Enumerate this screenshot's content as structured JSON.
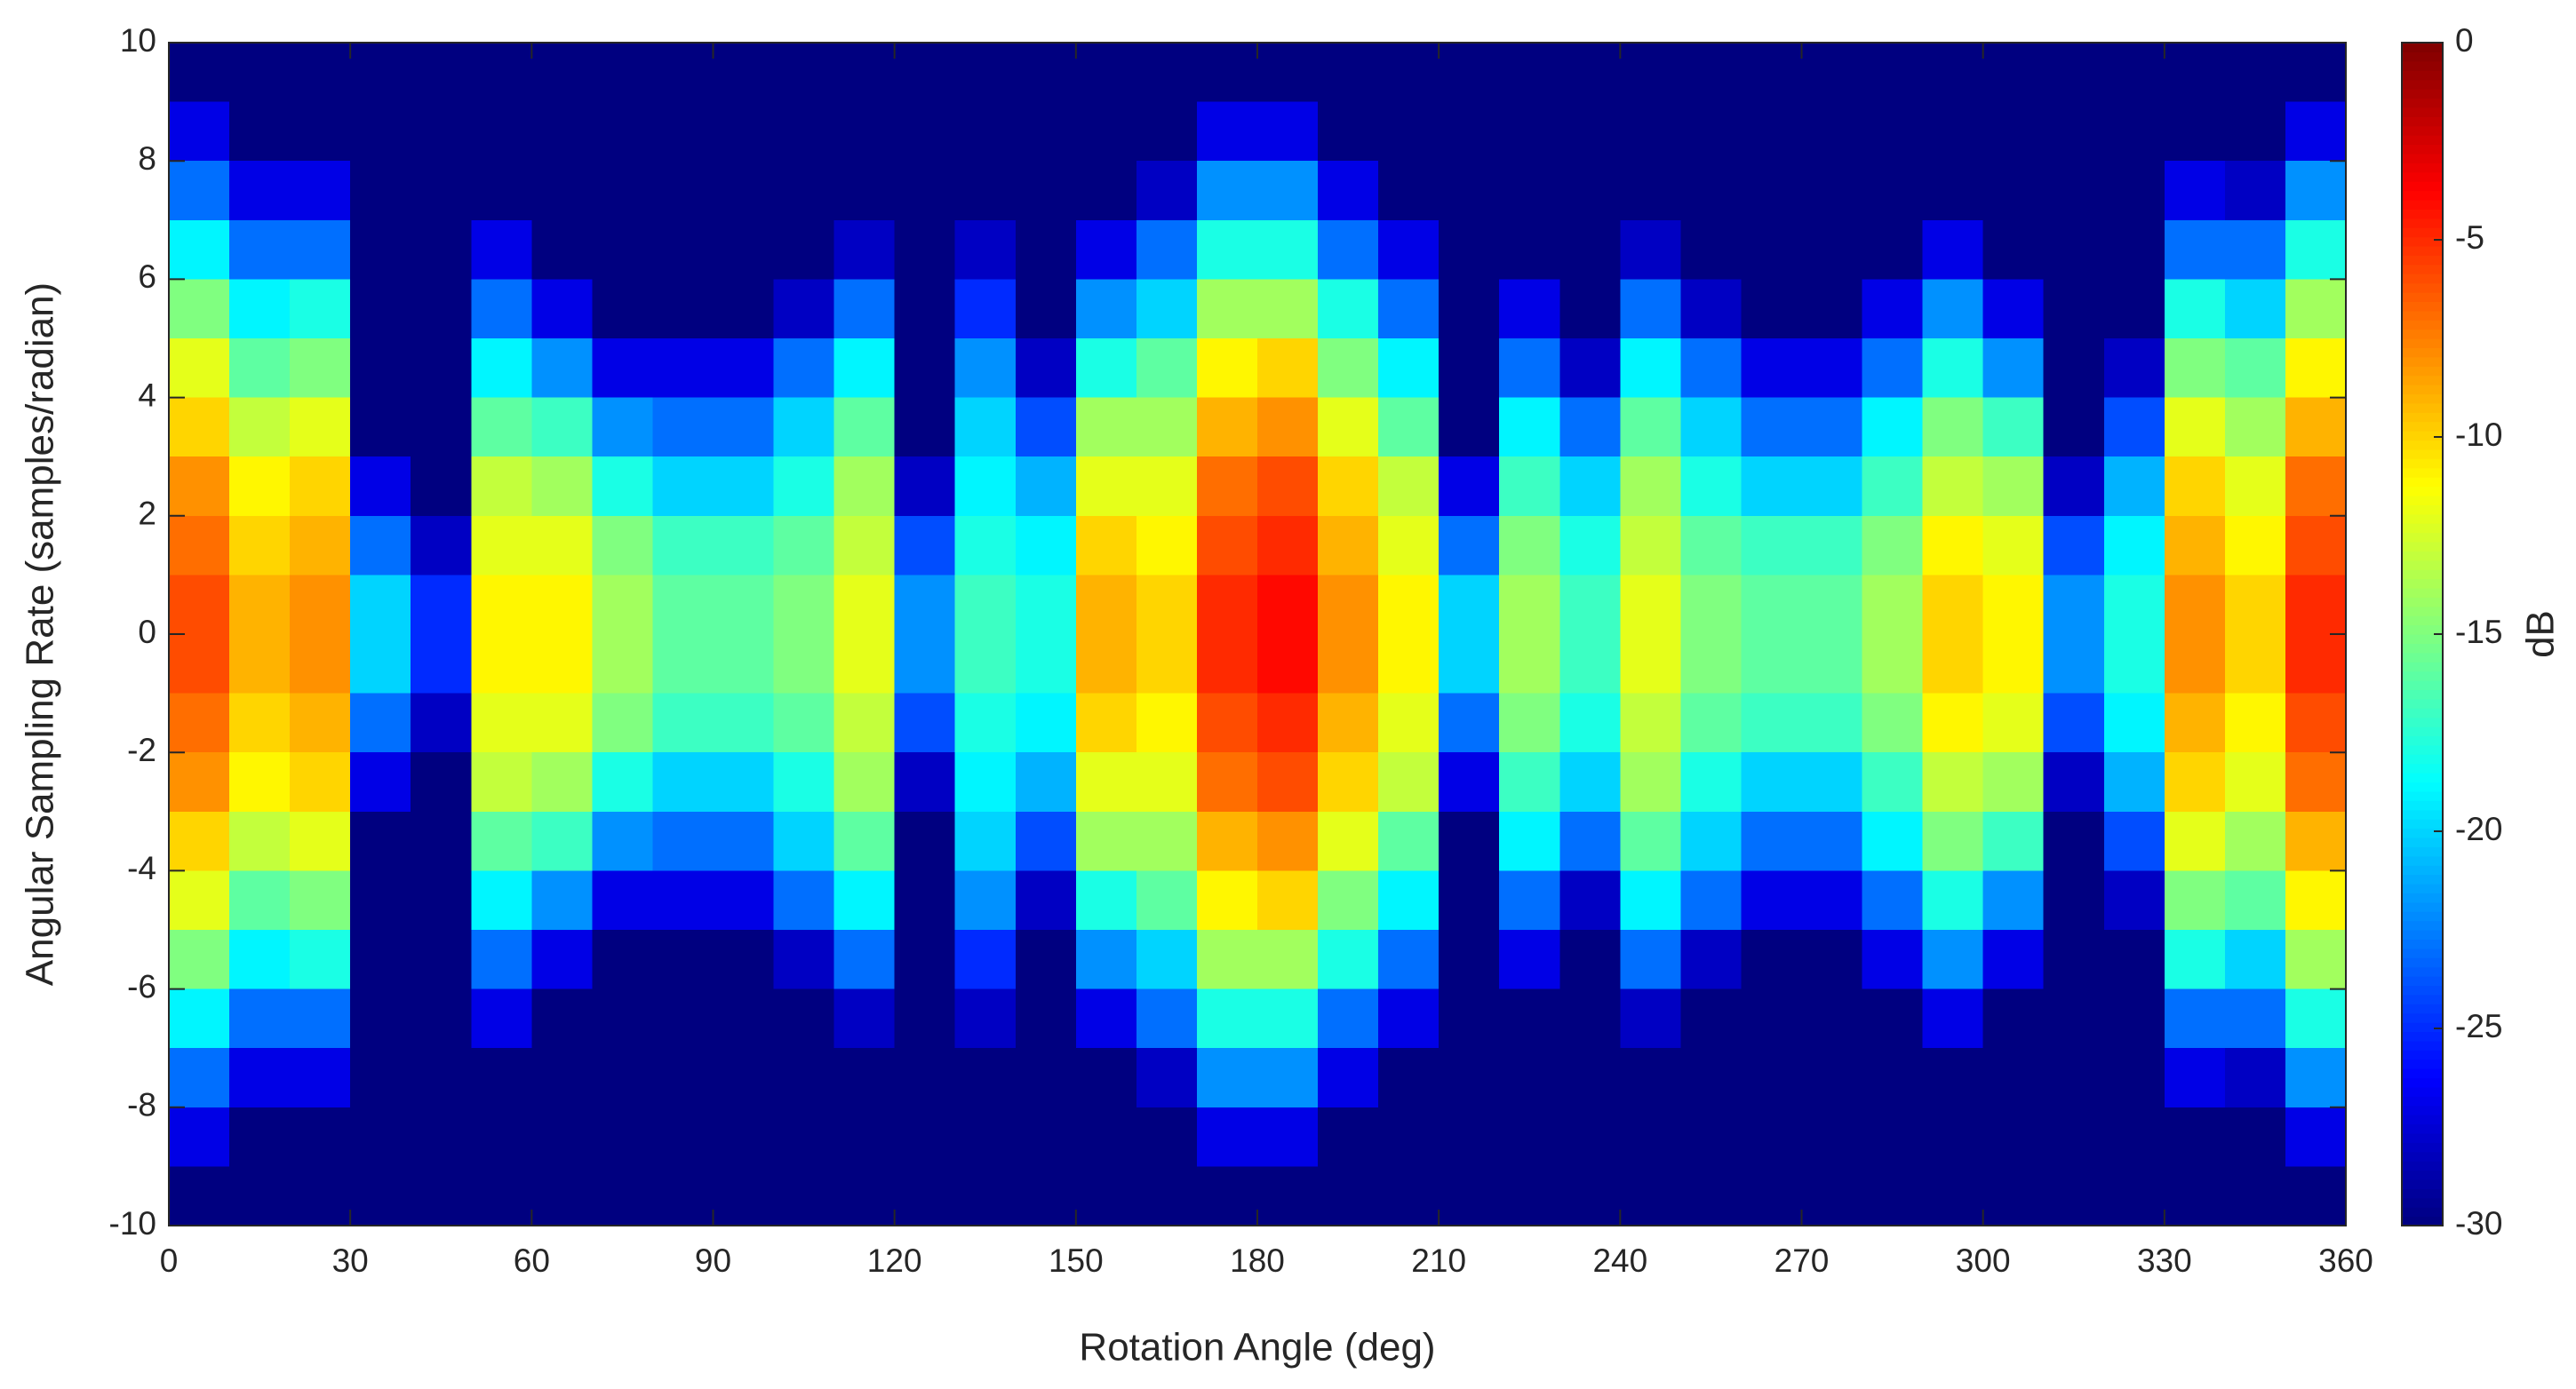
{
  "chart_data": {
    "type": "heatmap",
    "xlabel": "Rotation Angle (deg)",
    "ylabel": "Angular Sampling Rate (samples/radian)",
    "colorbar_label": "dB",
    "colormap": "jet",
    "xlim": [
      0,
      360
    ],
    "ylim": [
      -10,
      10
    ],
    "clim": [
      -30,
      0
    ],
    "xticks": [
      0,
      30,
      60,
      90,
      120,
      150,
      180,
      210,
      240,
      270,
      300,
      330,
      360
    ],
    "yticks": [
      -10,
      -8,
      -6,
      -4,
      -2,
      0,
      2,
      4,
      6,
      8,
      10
    ],
    "cticks": [
      0,
      -5,
      -10,
      -15,
      -20,
      -25,
      -30
    ],
    "x": [
      5,
      15,
      25,
      35,
      45,
      55,
      65,
      75,
      85,
      95,
      105,
      115,
      125,
      135,
      145,
      155,
      165,
      175,
      185,
      195,
      205,
      215,
      225,
      235,
      245,
      255,
      265,
      275,
      285,
      295,
      305,
      315,
      325,
      335,
      345,
      355
    ],
    "y": [
      9.5,
      8.5,
      7.5,
      6.5,
      5.5,
      4.5,
      3.5,
      2.5,
      1.5,
      0.5,
      -0.5,
      -1.5,
      -2.5,
      -3.5,
      -4.5,
      -5.5,
      -6.5,
      -7.5,
      -8.5,
      -9.5
    ],
    "z": [
      [
        -30,
        -27,
        -23,
        -19,
        -15,
        -12,
        -10,
        -8,
        -7,
        -6,
        -6,
        -7,
        -8,
        -10,
        -12,
        -15,
        -19,
        -23,
        -27,
        -30
      ],
      [
        -30,
        -30,
        -27,
        -23,
        -19,
        -16,
        -13,
        -11,
        -10,
        -9,
        -9,
        -10,
        -11,
        -13,
        -16,
        -19,
        -23,
        -27,
        -30,
        -30
      ],
      [
        -30,
        -30,
        -27,
        -23,
        -18,
        -15,
        -12,
        -10,
        -9,
        -8,
        -8,
        -9,
        -10,
        -12,
        -15,
        -18,
        -23,
        -27,
        -30,
        -30
      ],
      [
        -30,
        -30,
        -30,
        -30,
        -30,
        -30,
        -30,
        -27,
        -23,
        -20,
        -20,
        -23,
        -27,
        -30,
        -30,
        -30,
        -30,
        -30,
        -30,
        -30
      ],
      [
        -30,
        -30,
        -30,
        -30,
        -30,
        -30,
        -30,
        -30,
        -28,
        -25,
        -25,
        -28,
        -30,
        -30,
        -30,
        -30,
        -30,
        -30,
        -30,
        -30
      ],
      [
        -30,
        -30,
        -30,
        -27,
        -23,
        -19,
        -16,
        -13,
        -12,
        -11,
        -11,
        -12,
        -13,
        -16,
        -19,
        -23,
        -27,
        -30,
        -30,
        -30
      ],
      [
        -30,
        -30,
        -30,
        -30,
        -27,
        -22,
        -17,
        -14,
        -12,
        -11,
        -11,
        -12,
        -14,
        -17,
        -22,
        -27,
        -30,
        -30,
        -30,
        -30
      ],
      [
        -30,
        -30,
        -30,
        -30,
        -30,
        -27,
        -22,
        -18,
        -15,
        -14,
        -14,
        -15,
        -18,
        -22,
        -27,
        -30,
        -30,
        -30,
        -30,
        -30
      ],
      [
        -30,
        -30,
        -30,
        -30,
        -30,
        -27,
        -23,
        -20,
        -17,
        -16,
        -16,
        -17,
        -20,
        -23,
        -27,
        -30,
        -30,
        -30,
        -30,
        -30
      ],
      [
        -30,
        -30,
        -30,
        -30,
        -30,
        -27,
        -23,
        -20,
        -17,
        -16,
        -16,
        -17,
        -20,
        -23,
        -27,
        -30,
        -30,
        -30,
        -30,
        -30
      ],
      [
        -30,
        -30,
        -30,
        -30,
        -28,
        -23,
        -20,
        -18,
        -16,
        -15,
        -15,
        -16,
        -18,
        -20,
        -23,
        -28,
        -30,
        -30,
        -30,
        -30
      ],
      [
        -30,
        -30,
        -30,
        -28,
        -23,
        -19,
        -16,
        -14,
        -13,
        -12,
        -12,
        -13,
        -14,
        -16,
        -19,
        -23,
        -28,
        -30,
        -30,
        -30
      ],
      [
        -30,
        -30,
        -30,
        -30,
        -30,
        -30,
        -30,
        -28,
        -24,
        -22,
        -22,
        -24,
        -28,
        -30,
        -30,
        -30,
        -30,
        -30,
        -30,
        -30
      ],
      [
        -30,
        -30,
        -30,
        -28,
        -25,
        -22,
        -20,
        -19,
        -18,
        -17,
        -17,
        -18,
        -19,
        -20,
        -22,
        -25,
        -28,
        -30,
        -30,
        -30
      ],
      [
        -30,
        -30,
        -30,
        -30,
        -30,
        -28,
        -24,
        -21,
        -19,
        -18,
        -18,
        -19,
        -21,
        -24,
        -28,
        -30,
        -30,
        -30,
        -30,
        -30
      ],
      [
        -30,
        -30,
        -30,
        -27,
        -22,
        -18,
        -14,
        -12,
        -10,
        -9,
        -9,
        -10,
        -12,
        -14,
        -18,
        -22,
        -27,
        -30,
        -30,
        -30
      ],
      [
        -30,
        -30,
        -28,
        -23,
        -20,
        -16,
        -14,
        -12,
        -11,
        -10,
        -10,
        -11,
        -12,
        -14,
        -16,
        -20,
        -23,
        -28,
        -30,
        -30
      ],
      [
        -30,
        -27,
        -22,
        -18,
        -14,
        -11,
        -9,
        -7,
        -6,
        -5,
        -5,
        -6,
        -7,
        -9,
        -11,
        -14,
        -18,
        -22,
        -27,
        -30
      ],
      [
        -30,
        -27,
        -22,
        -18,
        -14,
        -10,
        -8,
        -6,
        -5,
        -4,
        -4,
        -5,
        -6,
        -8,
        -10,
        -14,
        -18,
        -22,
        -27,
        -30
      ],
      [
        -30,
        -30,
        -27,
        -23,
        -18,
        -15,
        -12,
        -10,
        -9,
        -8,
        -8,
        -9,
        -10,
        -12,
        -15,
        -18,
        -23,
        -27,
        -30,
        -30
      ],
      [
        -30,
        -30,
        -30,
        -27,
        -23,
        -19,
        -16,
        -13,
        -12,
        -11,
        -11,
        -12,
        -13,
        -16,
        -19,
        -23,
        -27,
        -30,
        -30,
        -30
      ],
      [
        -30,
        -30,
        -30,
        -30,
        -30,
        -30,
        -30,
        -27,
        -23,
        -20,
        -20,
        -23,
        -27,
        -30,
        -30,
        -30,
        -30,
        -30,
        -30,
        -30
      ],
      [
        -30,
        -30,
        -30,
        -30,
        -27,
        -23,
        -19,
        -17,
        -15,
        -14,
        -14,
        -15,
        -17,
        -19,
        -23,
        -27,
        -30,
        -30,
        -30,
        -30
      ],
      [
        -30,
        -30,
        -30,
        -30,
        -30,
        -28,
        -23,
        -20,
        -18,
        -17,
        -17,
        -18,
        -20,
        -23,
        -28,
        -30,
        -30,
        -30,
        -30,
        -30
      ],
      [
        -30,
        -30,
        -30,
        -28,
        -23,
        -19,
        -16,
        -14,
        -13,
        -12,
        -12,
        -13,
        -14,
        -16,
        -19,
        -23,
        -28,
        -30,
        -30,
        -30
      ],
      [
        -30,
        -30,
        -30,
        -30,
        -28,
        -23,
        -20,
        -18,
        -16,
        -15,
        -15,
        -16,
        -18,
        -20,
        -23,
        -28,
        -30,
        -30,
        -30,
        -30
      ],
      [
        -30,
        -30,
        -30,
        -30,
        -30,
        -27,
        -23,
        -20,
        -17,
        -16,
        -16,
        -17,
        -20,
        -23,
        -27,
        -30,
        -30,
        -30,
        -30,
        -30
      ],
      [
        -30,
        -30,
        -30,
        -30,
        -30,
        -27,
        -23,
        -20,
        -17,
        -16,
        -16,
        -17,
        -20,
        -23,
        -27,
        -30,
        -30,
        -30,
        -30,
        -30
      ],
      [
        -30,
        -30,
        -30,
        -30,
        -27,
        -23,
        -19,
        -17,
        -15,
        -14,
        -14,
        -15,
        -17,
        -19,
        -23,
        -27,
        -30,
        -30,
        -30,
        -30
      ],
      [
        -30,
        -30,
        -30,
        -27,
        -22,
        -18,
        -15,
        -13,
        -11,
        -10,
        -10,
        -11,
        -13,
        -15,
        -18,
        -22,
        -27,
        -30,
        -30,
        -30
      ],
      [
        -30,
        -30,
        -30,
        -30,
        -27,
        -22,
        -17,
        -14,
        -12,
        -11,
        -11,
        -12,
        -14,
        -17,
        -22,
        -27,
        -30,
        -30,
        -30,
        -30
      ],
      [
        -30,
        -30,
        -30,
        -30,
        -30,
        -30,
        -30,
        -28,
        -24,
        -22,
        -22,
        -24,
        -28,
        -30,
        -30,
        -30,
        -30,
        -30,
        -30,
        -30
      ],
      [
        -30,
        -30,
        -30,
        -30,
        -30,
        -28,
        -24,
        -21,
        -19,
        -18,
        -18,
        -19,
        -21,
        -24,
        -28,
        -30,
        -30,
        -30,
        -30,
        -30
      ],
      [
        -30,
        -30,
        -27,
        -23,
        -18,
        -15,
        -12,
        -10,
        -9,
        -8,
        -8,
        -9,
        -10,
        -12,
        -15,
        -18,
        -23,
        -27,
        -30,
        -30
      ],
      [
        -30,
        -30,
        -28,
        -23,
        -20,
        -16,
        -14,
        -12,
        -11,
        -10,
        -10,
        -11,
        -12,
        -14,
        -16,
        -20,
        -23,
        -28,
        -30,
        -30
      ],
      [
        -30,
        -27,
        -22,
        -18,
        -14,
        -11,
        -9,
        -7,
        -6,
        -5,
        -5,
        -6,
        -7,
        -9,
        -11,
        -14,
        -18,
        -22,
        -27,
        -30
      ]
    ]
  }
}
